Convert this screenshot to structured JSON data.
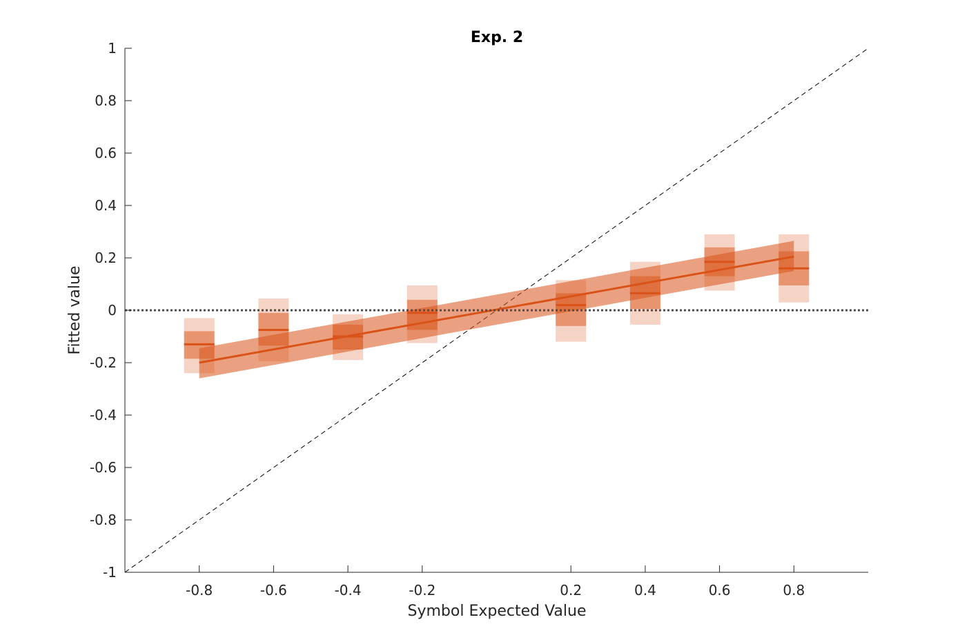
{
  "chart_data": {
    "type": "box",
    "title": "Exp. 2",
    "xlabel": "Symbol Expected Value",
    "ylabel": "Fitted value",
    "xlim": [
      -1,
      1
    ],
    "ylim": [
      -1,
      1
    ],
    "x_ticks": [
      -0.8,
      -0.6,
      -0.4,
      -0.2,
      0.2,
      0.4,
      0.6,
      0.8
    ],
    "x_tick_labels": [
      "-0.8",
      "-0.6",
      "-0.4",
      "-0.2",
      "0.2",
      "0.4",
      "0.6",
      "0.8"
    ],
    "y_ticks": [
      -1,
      -0.8,
      -0.6,
      -0.4,
      -0.2,
      0,
      0.2,
      0.4,
      0.6,
      0.8,
      1
    ],
    "y_tick_labels": [
      "-1",
      "-0.8",
      "-0.6",
      "-0.4",
      "-0.2",
      "0",
      "0.2",
      "0.4",
      "0.6",
      "0.8",
      "1"
    ],
    "color": "#d95319",
    "points": [
      {
        "x": -0.8,
        "mean": -0.13,
        "inner": [
          -0.185,
          -0.08
        ],
        "outer": [
          -0.24,
          -0.03
        ]
      },
      {
        "x": -0.6,
        "mean": -0.075,
        "inner": [
          -0.135,
          -0.01
        ],
        "outer": [
          -0.195,
          0.045
        ]
      },
      {
        "x": -0.4,
        "mean": -0.1,
        "inner": [
          -0.15,
          -0.055
        ],
        "outer": [
          -0.19,
          -0.015
        ]
      },
      {
        "x": -0.2,
        "mean": -0.01,
        "inner": [
          -0.075,
          0.04
        ],
        "outer": [
          -0.125,
          0.095
        ]
      },
      {
        "x": 0.2,
        "mean": 0.02,
        "inner": [
          -0.06,
          0.065
        ],
        "outer": [
          -0.12,
          0.115
        ]
      },
      {
        "x": 0.4,
        "mean": 0.065,
        "inner": [
          0.005,
          0.13
        ],
        "outer": [
          -0.055,
          0.185
        ]
      },
      {
        "x": 0.6,
        "mean": 0.185,
        "inner": [
          0.13,
          0.24
        ],
        "outer": [
          0.075,
          0.29
        ]
      },
      {
        "x": 0.8,
        "mean": 0.16,
        "inner": [
          0.095,
          0.225
        ],
        "outer": [
          0.03,
          0.29
        ]
      }
    ],
    "fit_line": {
      "x": [
        -0.8,
        0.8
      ],
      "y": [
        -0.2,
        0.205
      ]
    },
    "fit_band": {
      "x": [
        -0.8,
        0.8
      ],
      "lower": [
        -0.26,
        0.15
      ],
      "upper": [
        -0.145,
        0.265
      ]
    },
    "reference_lines": {
      "identity": "dashed",
      "zero": "dotted"
    }
  }
}
